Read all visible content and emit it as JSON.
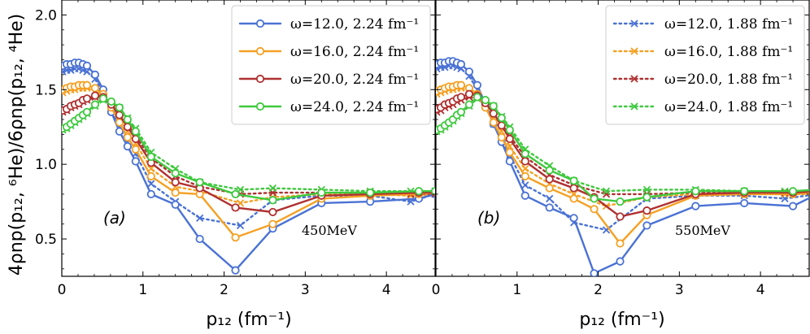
{
  "chart_data": [
    {
      "type": "line",
      "panel_label": "(a)",
      "annotation": "450MeV",
      "xlabel": "p₁₂ (fm⁻¹)",
      "ylabel": "4ρnp(p₁₂, ⁶He)/6ρnp(p₁₂, ⁴He)",
      "xlim": [
        0,
        4.6
      ],
      "ylim": [
        0.25,
        2.1
      ],
      "xticks": [
        "0",
        "1",
        "2",
        "3",
        "4"
      ],
      "yticks": [
        "0.5",
        "1.0",
        "1.5",
        "2.0"
      ],
      "grid": false,
      "legend_position": "top-right",
      "series": [
        {
          "name": "ω=12.0, 2.24 fm⁻¹",
          "color": "#4a72d4",
          "marker": "circle",
          "style": "solid",
          "x": [
            0.01,
            0.06,
            0.11,
            0.16,
            0.21,
            0.26,
            0.31,
            0.41,
            0.51,
            0.61,
            0.71,
            0.81,
            0.91,
            1.1,
            1.4,
            1.7,
            2.14,
            2.6,
            3.2,
            3.8,
            4.4,
            4.6
          ],
          "y": [
            1.66,
            1.67,
            1.67,
            1.68,
            1.68,
            1.67,
            1.66,
            1.6,
            1.5,
            1.35,
            1.22,
            1.12,
            1.02,
            0.8,
            0.73,
            0.5,
            0.29,
            0.57,
            0.74,
            0.75,
            0.77,
            0.8
          ]
        },
        {
          "name": "ω=12.0, 1.88 fm⁻¹",
          "color": "#4a72d4",
          "marker": "x",
          "style": "dotted",
          "x": [
            0.01,
            0.06,
            0.11,
            0.16,
            0.21,
            0.26,
            0.31,
            0.41,
            0.51,
            0.61,
            0.71,
            0.81,
            0.91,
            1.1,
            1.4,
            1.7,
            2.2,
            2.6,
            3.2,
            3.8,
            4.3,
            4.6
          ],
          "y": [
            1.62,
            1.63,
            1.63,
            1.64,
            1.64,
            1.63,
            1.62,
            1.57,
            1.48,
            1.37,
            1.25,
            1.15,
            1.07,
            0.87,
            0.75,
            0.64,
            0.59,
            0.76,
            0.79,
            0.79,
            0.75,
            0.8
          ]
        },
        {
          "name": "ω=16.0, 2.24 fm⁻¹",
          "color": "#f5a023",
          "marker": "circle",
          "style": "solid",
          "x": [
            0.01,
            0.06,
            0.11,
            0.16,
            0.21,
            0.26,
            0.31,
            0.41,
            0.51,
            0.61,
            0.71,
            0.81,
            0.91,
            1.1,
            1.4,
            1.7,
            2.14,
            2.6,
            3.2,
            3.8,
            4.4,
            4.6
          ],
          "y": [
            1.5,
            1.51,
            1.52,
            1.52,
            1.53,
            1.53,
            1.53,
            1.51,
            1.47,
            1.38,
            1.28,
            1.18,
            1.1,
            0.92,
            0.81,
            0.8,
            0.51,
            0.6,
            0.77,
            0.79,
            0.8,
            0.81
          ]
        },
        {
          "name": "ω=16.0, 1.88 fm⁻¹",
          "color": "#f5a023",
          "marker": "x",
          "style": "dotted",
          "x": [
            0.01,
            0.06,
            0.11,
            0.16,
            0.21,
            0.26,
            0.31,
            0.41,
            0.51,
            0.61,
            0.71,
            0.81,
            0.91,
            1.1,
            1.4,
            1.7,
            2.2,
            2.6,
            3.2,
            3.8,
            4.3,
            4.6
          ],
          "y": [
            1.48,
            1.49,
            1.5,
            1.5,
            1.51,
            1.51,
            1.51,
            1.49,
            1.46,
            1.39,
            1.31,
            1.22,
            1.14,
            0.97,
            0.85,
            0.82,
            0.74,
            0.78,
            0.8,
            0.8,
            0.79,
            0.8
          ]
        },
        {
          "name": "ω=20.0, 2.24 fm⁻¹",
          "color": "#b03030",
          "marker": "circle",
          "style": "solid",
          "x": [
            0.01,
            0.06,
            0.11,
            0.16,
            0.21,
            0.26,
            0.31,
            0.41,
            0.51,
            0.61,
            0.71,
            0.81,
            0.91,
            1.1,
            1.4,
            1.7,
            2.14,
            2.6,
            3.2,
            3.8,
            4.4,
            4.6
          ],
          "y": [
            1.36,
            1.37,
            1.39,
            1.4,
            1.41,
            1.43,
            1.44,
            1.46,
            1.45,
            1.4,
            1.33,
            1.25,
            1.17,
            1.01,
            0.88,
            0.84,
            0.71,
            0.68,
            0.79,
            0.8,
            0.81,
            0.81
          ]
        },
        {
          "name": "ω=20.0, 1.88 fm⁻¹",
          "color": "#b03030",
          "marker": "x",
          "style": "dotted",
          "x": [
            0.01,
            0.06,
            0.11,
            0.16,
            0.21,
            0.26,
            0.31,
            0.41,
            0.51,
            0.61,
            0.71,
            0.81,
            0.91,
            1.1,
            1.4,
            1.7,
            2.2,
            2.6,
            3.2,
            3.8,
            4.3,
            4.6
          ],
          "y": [
            1.35,
            1.36,
            1.38,
            1.39,
            1.4,
            1.42,
            1.43,
            1.45,
            1.44,
            1.4,
            1.34,
            1.27,
            1.19,
            1.04,
            0.92,
            0.85,
            0.8,
            0.81,
            0.81,
            0.81,
            0.8,
            0.8
          ]
        },
        {
          "name": "ω=24.0, 2.24 fm⁻¹",
          "color": "#3ec93e",
          "marker": "circle",
          "style": "solid",
          "x": [
            0.01,
            0.06,
            0.11,
            0.16,
            0.21,
            0.26,
            0.31,
            0.41,
            0.51,
            0.61,
            0.71,
            0.81,
            0.91,
            1.1,
            1.4,
            1.7,
            2.14,
            2.6,
            3.2,
            3.8,
            4.4,
            4.6
          ],
          "y": [
            1.24,
            1.25,
            1.27,
            1.29,
            1.31,
            1.33,
            1.35,
            1.4,
            1.44,
            1.42,
            1.38,
            1.3,
            1.22,
            1.05,
            0.94,
            0.88,
            0.8,
            0.76,
            0.81,
            0.81,
            0.82,
            0.82
          ]
        },
        {
          "name": "ω=24.0, 1.88 fm⁻¹",
          "color": "#3ec93e",
          "marker": "x",
          "style": "dotted",
          "x": [
            0.01,
            0.06,
            0.11,
            0.16,
            0.21,
            0.26,
            0.31,
            0.41,
            0.51,
            0.61,
            0.71,
            0.81,
            0.91,
            1.1,
            1.4,
            1.7,
            2.2,
            2.6,
            3.2,
            3.8,
            4.3,
            4.6
          ],
          "y": [
            1.23,
            1.24,
            1.26,
            1.28,
            1.3,
            1.32,
            1.34,
            1.39,
            1.43,
            1.41,
            1.38,
            1.31,
            1.24,
            1.08,
            0.97,
            0.88,
            0.83,
            0.84,
            0.83,
            0.82,
            0.82,
            0.82
          ]
        }
      ]
    },
    {
      "type": "line",
      "panel_label": "(b)",
      "annotation": "550MeV",
      "xlabel": "p₁₂ (fm⁻¹)",
      "ylabel": "",
      "xlim": [
        0,
        4.6
      ],
      "ylim": [
        0.25,
        2.1
      ],
      "xticks": [
        "0",
        "1",
        "2",
        "3",
        "4"
      ],
      "yticks": [],
      "grid": false,
      "legend_position": "top-right",
      "series": [
        {
          "name": "ω=12.0, 2.24 fm⁻¹",
          "color": "#4a72d4",
          "marker": "circle",
          "style": "solid",
          "x": [
            0.01,
            0.06,
            0.11,
            0.16,
            0.21,
            0.26,
            0.31,
            0.41,
            0.51,
            0.61,
            0.71,
            0.81,
            0.91,
            1.1,
            1.4,
            1.7,
            1.95,
            2.27,
            2.6,
            3.2,
            3.8,
            4.4,
            4.7
          ],
          "y": [
            1.67,
            1.68,
            1.68,
            1.69,
            1.69,
            1.68,
            1.67,
            1.62,
            1.53,
            1.4,
            1.27,
            1.15,
            1.02,
            0.79,
            0.71,
            0.64,
            0.27,
            0.35,
            0.59,
            0.72,
            0.74,
            0.72,
            0.8
          ]
        },
        {
          "name": "ω=12.0, 1.88 fm⁻¹",
          "color": "#4a72d4",
          "marker": "x",
          "style": "dotted",
          "x": [
            0.01,
            0.06,
            0.11,
            0.16,
            0.21,
            0.26,
            0.31,
            0.41,
            0.51,
            0.61,
            0.71,
            0.81,
            0.91,
            1.1,
            1.4,
            1.7,
            2.1,
            2.6,
            3.2,
            3.8,
            4.3,
            4.7
          ],
          "y": [
            1.64,
            1.65,
            1.65,
            1.66,
            1.66,
            1.65,
            1.64,
            1.59,
            1.5,
            1.39,
            1.27,
            1.17,
            1.06,
            0.86,
            0.77,
            0.61,
            0.56,
            0.77,
            0.79,
            0.79,
            0.77,
            0.8
          ]
        },
        {
          "name": "ω=16.0, 2.24 fm⁻¹",
          "color": "#f5a023",
          "marker": "circle",
          "style": "solid",
          "x": [
            0.01,
            0.06,
            0.11,
            0.16,
            0.21,
            0.26,
            0.31,
            0.41,
            0.51,
            0.61,
            0.71,
            0.81,
            0.91,
            1.1,
            1.4,
            1.7,
            1.95,
            2.27,
            2.6,
            3.2,
            3.8,
            4.4,
            4.7
          ],
          "y": [
            1.49,
            1.5,
            1.51,
            1.52,
            1.52,
            1.53,
            1.53,
            1.51,
            1.47,
            1.38,
            1.28,
            1.18,
            1.08,
            0.92,
            0.84,
            0.77,
            0.7,
            0.47,
            0.66,
            0.79,
            0.8,
            0.8,
            0.81
          ]
        },
        {
          "name": "ω=16.0, 1.88 fm⁻¹",
          "color": "#f5a023",
          "marker": "x",
          "style": "dotted",
          "x": [
            0.01,
            0.06,
            0.11,
            0.16,
            0.21,
            0.26,
            0.31,
            0.41,
            0.51,
            0.61,
            0.71,
            0.81,
            0.91,
            1.1,
            1.4,
            1.7,
            2.1,
            2.6,
            3.2,
            3.8,
            4.3,
            4.7
          ],
          "y": [
            1.47,
            1.48,
            1.49,
            1.5,
            1.5,
            1.51,
            1.51,
            1.49,
            1.46,
            1.39,
            1.31,
            1.22,
            1.12,
            0.97,
            0.87,
            0.8,
            0.72,
            0.78,
            0.8,
            0.8,
            0.8,
            0.8
          ]
        },
        {
          "name": "ω=20.0, 2.24 fm⁻¹",
          "color": "#b03030",
          "marker": "circle",
          "style": "solid",
          "x": [
            0.01,
            0.06,
            0.11,
            0.16,
            0.21,
            0.26,
            0.31,
            0.41,
            0.51,
            0.61,
            0.71,
            0.81,
            0.91,
            1.1,
            1.4,
            1.7,
            1.95,
            2.27,
            2.6,
            3.2,
            3.8,
            4.4,
            4.7
          ],
          "y": [
            1.37,
            1.38,
            1.4,
            1.41,
            1.42,
            1.44,
            1.45,
            1.47,
            1.46,
            1.41,
            1.34,
            1.26,
            1.17,
            1.02,
            0.9,
            0.84,
            0.78,
            0.65,
            0.69,
            0.8,
            0.81,
            0.81,
            0.82
          ]
        },
        {
          "name": "ω=20.0, 1.88 fm⁻¹",
          "color": "#b03030",
          "marker": "x",
          "style": "dotted",
          "x": [
            0.01,
            0.06,
            0.11,
            0.16,
            0.21,
            0.26,
            0.31,
            0.41,
            0.51,
            0.61,
            0.71,
            0.81,
            0.91,
            1.1,
            1.4,
            1.7,
            2.1,
            2.6,
            3.2,
            3.8,
            4.3,
            4.7
          ],
          "y": [
            1.35,
            1.36,
            1.38,
            1.39,
            1.4,
            1.42,
            1.43,
            1.45,
            1.44,
            1.4,
            1.34,
            1.27,
            1.19,
            1.05,
            0.93,
            0.86,
            0.8,
            0.8,
            0.81,
            0.81,
            0.81,
            0.81
          ]
        },
        {
          "name": "ω=24.0, 2.24 fm⁻¹",
          "color": "#3ec93e",
          "marker": "circle",
          "style": "solid",
          "x": [
            0.01,
            0.06,
            0.11,
            0.16,
            0.21,
            0.26,
            0.31,
            0.41,
            0.51,
            0.61,
            0.71,
            0.81,
            0.91,
            1.1,
            1.4,
            1.7,
            1.95,
            2.27,
            2.6,
            3.2,
            3.8,
            4.4,
            4.7
          ],
          "y": [
            1.23,
            1.24,
            1.26,
            1.28,
            1.3,
            1.33,
            1.35,
            1.4,
            1.45,
            1.43,
            1.39,
            1.31,
            1.23,
            1.07,
            0.96,
            0.89,
            0.77,
            0.75,
            0.78,
            0.82,
            0.82,
            0.82,
            0.83
          ]
        },
        {
          "name": "ω=24.0, 1.88 fm⁻¹",
          "color": "#3ec93e",
          "marker": "x",
          "style": "dotted",
          "x": [
            0.01,
            0.06,
            0.11,
            0.16,
            0.21,
            0.26,
            0.31,
            0.41,
            0.51,
            0.61,
            0.71,
            0.81,
            0.91,
            1.1,
            1.4,
            1.7,
            2.1,
            2.6,
            3.2,
            3.8,
            4.3,
            4.7
          ],
          "y": [
            1.22,
            1.23,
            1.25,
            1.27,
            1.29,
            1.32,
            1.34,
            1.39,
            1.44,
            1.42,
            1.39,
            1.32,
            1.25,
            1.1,
            0.99,
            0.89,
            0.82,
            0.83,
            0.83,
            0.82,
            0.82,
            0.82
          ]
        }
      ]
    }
  ],
  "legend_a": [
    {
      "label": "ω=12.0, 2.24 fm⁻¹",
      "color": "#4a72d4",
      "marker": "circle",
      "style": "solid"
    },
    {
      "label": "ω=16.0, 2.24 fm⁻¹",
      "color": "#f5a023",
      "marker": "circle",
      "style": "solid"
    },
    {
      "label": "ω=20.0, 2.24 fm⁻¹",
      "color": "#b03030",
      "marker": "circle",
      "style": "solid"
    },
    {
      "label": "ω=24.0, 2.24 fm⁻¹",
      "color": "#3ec93e",
      "marker": "circle",
      "style": "solid"
    }
  ],
  "legend_b": [
    {
      "label": "ω=12.0, 1.88 fm⁻¹",
      "color": "#4a72d4",
      "marker": "x",
      "style": "dotted"
    },
    {
      "label": "ω=16.0, 1.88 fm⁻¹",
      "color": "#f5a023",
      "marker": "x",
      "style": "dotted"
    },
    {
      "label": "ω=20.0, 1.88 fm⁻¹",
      "color": "#b03030",
      "marker": "x",
      "style": "dotted"
    },
    {
      "label": "ω=24.0, 1.88 fm⁻¹",
      "color": "#3ec93e",
      "marker": "x",
      "style": "dotted"
    }
  ]
}
